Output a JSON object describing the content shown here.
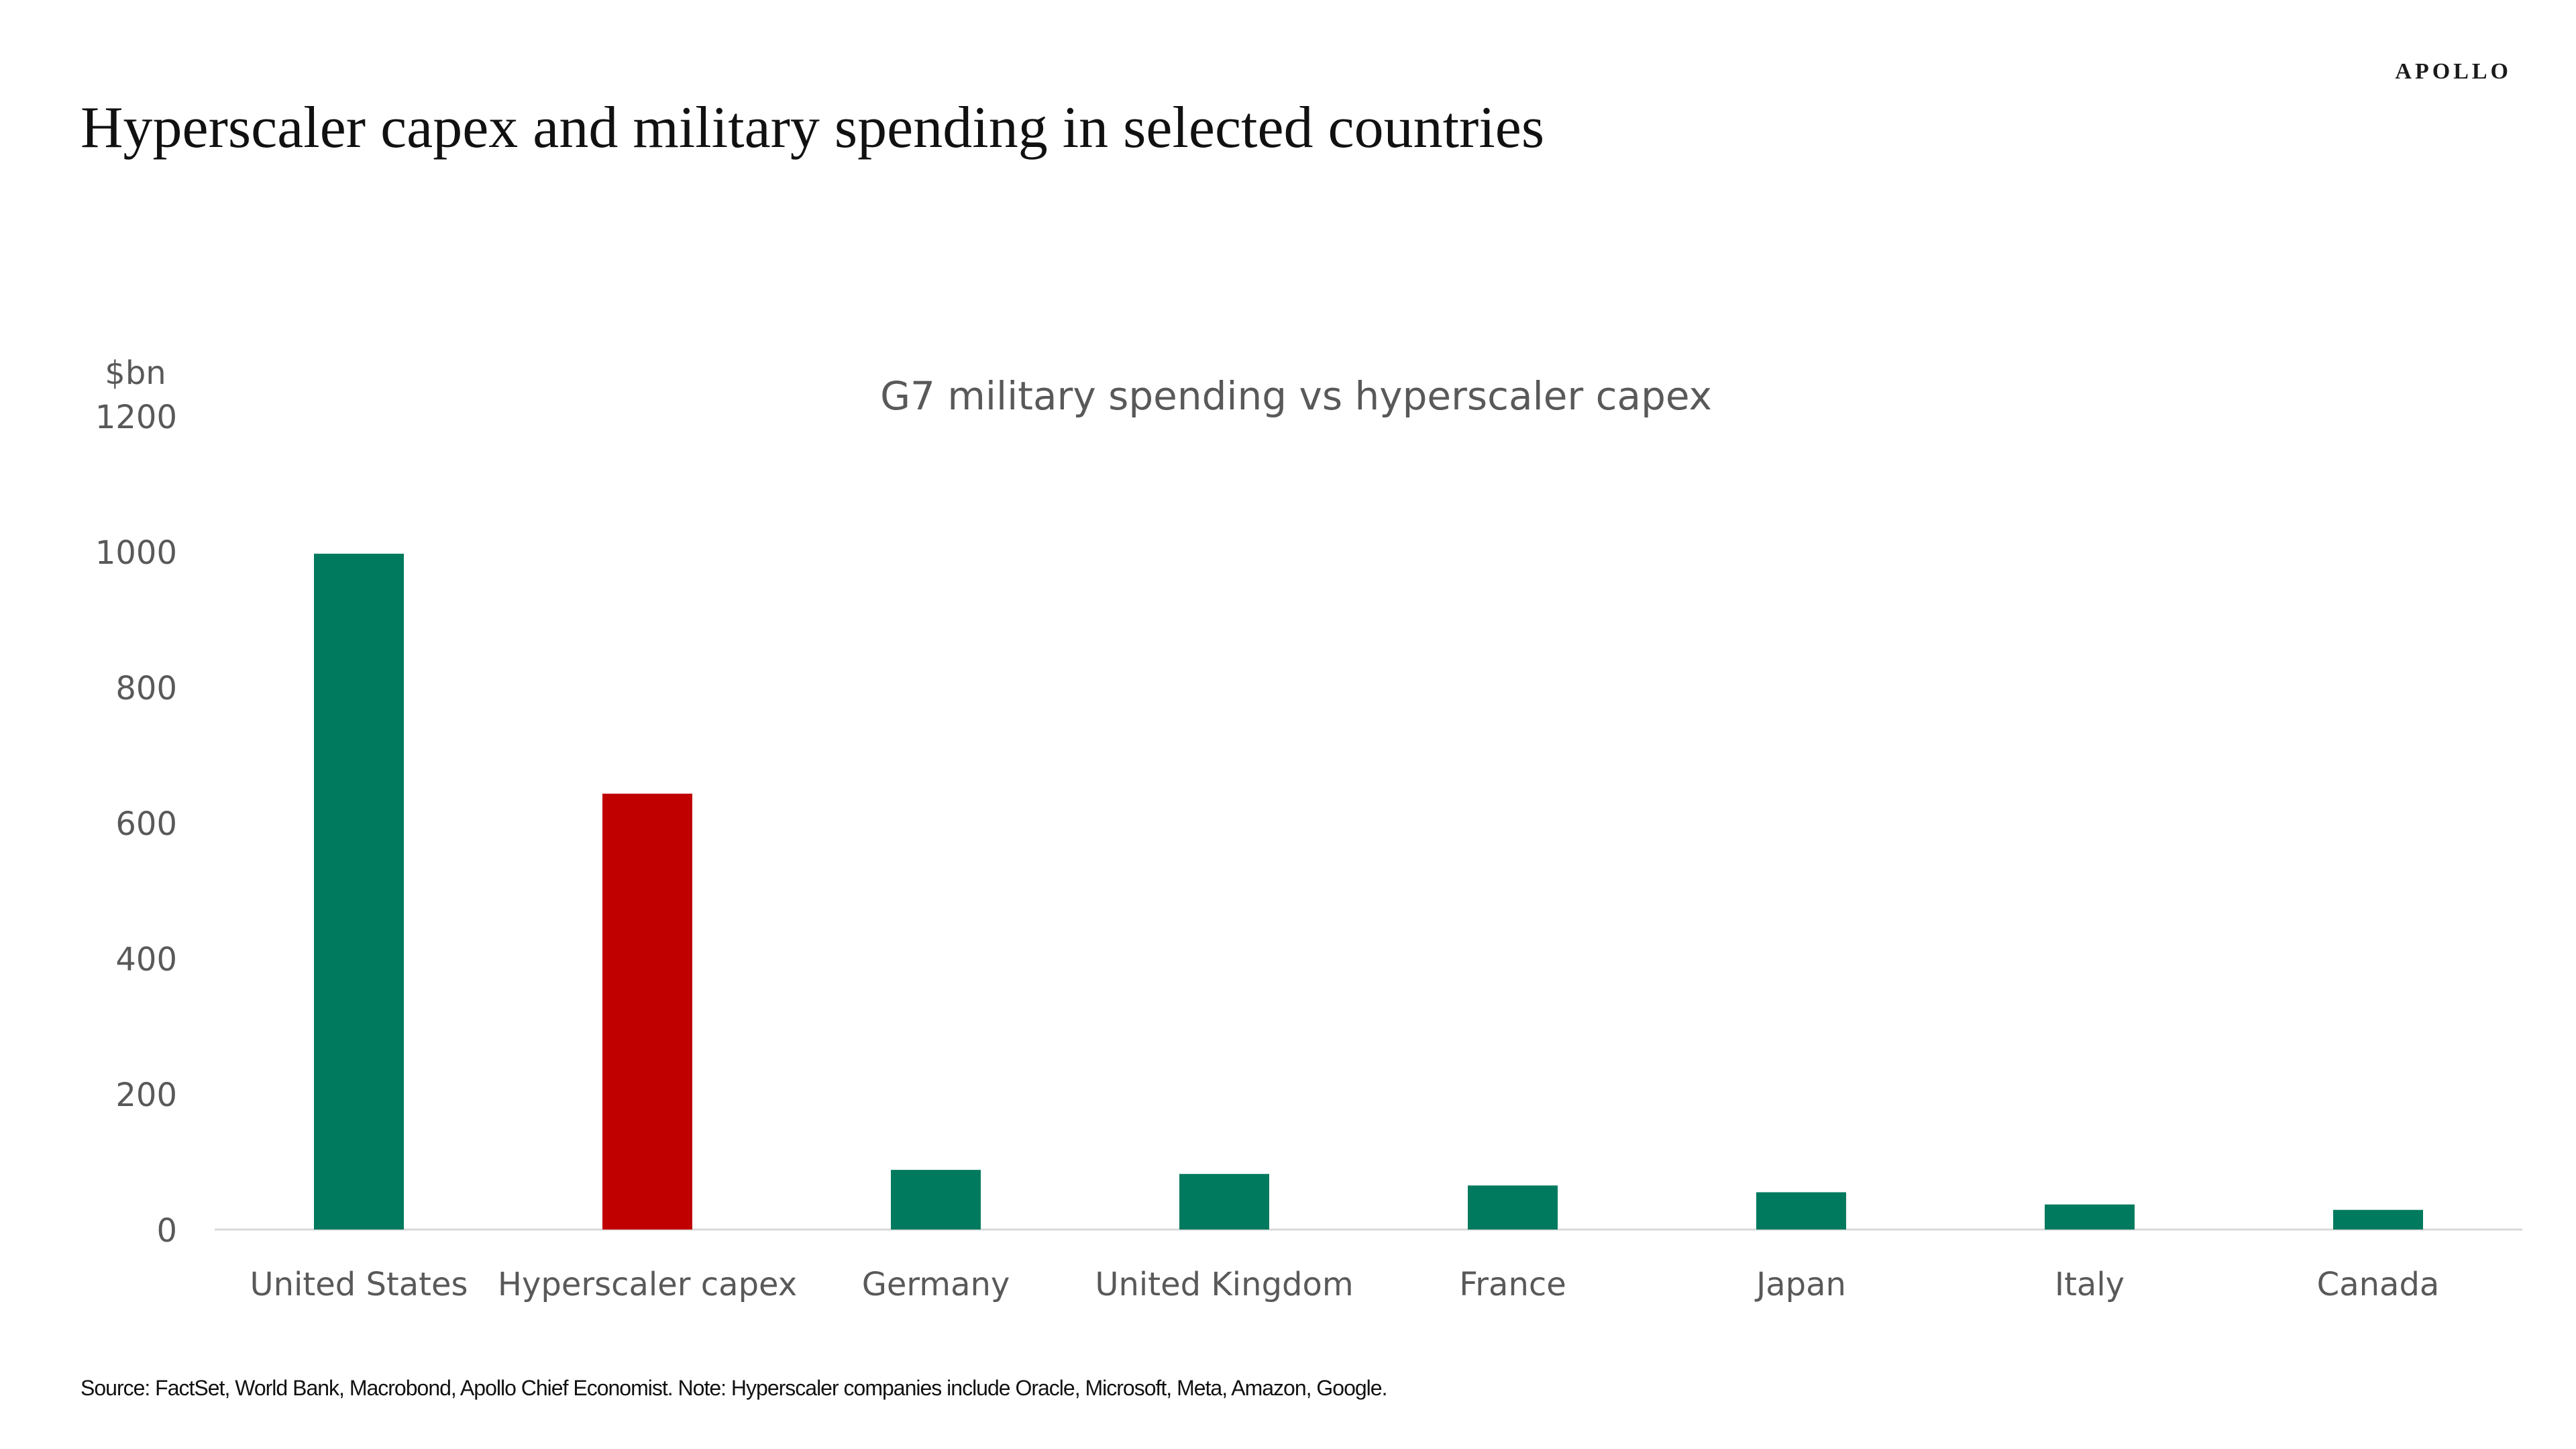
{
  "header": {
    "brand": "APOLLO",
    "title": "Hyperscaler capex and military spending in selected countries"
  },
  "footer": {
    "source": "Source: FactSet, World Bank, Macrobond, Apollo Chief Economist. Note: Hyperscaler companies include Oracle, Microsoft, Meta, Amazon, Google."
  },
  "chart_data": {
    "type": "bar",
    "title": "G7 military spending vs hyperscaler capex",
    "ylabel": "$bn",
    "xlabel": "",
    "ylim": [
      0,
      1200
    ],
    "yticks": [
      0,
      200,
      400,
      600,
      800,
      1000,
      1200
    ],
    "grid": false,
    "legend": "none",
    "categories": [
      "United States",
      "Hyperscaler capex",
      "Germany",
      "United Kingdom",
      "France",
      "Japan",
      "Italy",
      "Canada"
    ],
    "values": [
      997,
      643,
      88,
      82,
      65,
      55,
      37,
      29
    ],
    "colors": {
      "military": "#007A5E",
      "hyperscaler": "#C00000",
      "axis": "#D9D9D9",
      "tick_text": "#595959",
      "title_text": "#595959"
    },
    "bar_color_keys": [
      "military",
      "hyperscaler",
      "military",
      "military",
      "military",
      "military",
      "military",
      "military"
    ]
  }
}
